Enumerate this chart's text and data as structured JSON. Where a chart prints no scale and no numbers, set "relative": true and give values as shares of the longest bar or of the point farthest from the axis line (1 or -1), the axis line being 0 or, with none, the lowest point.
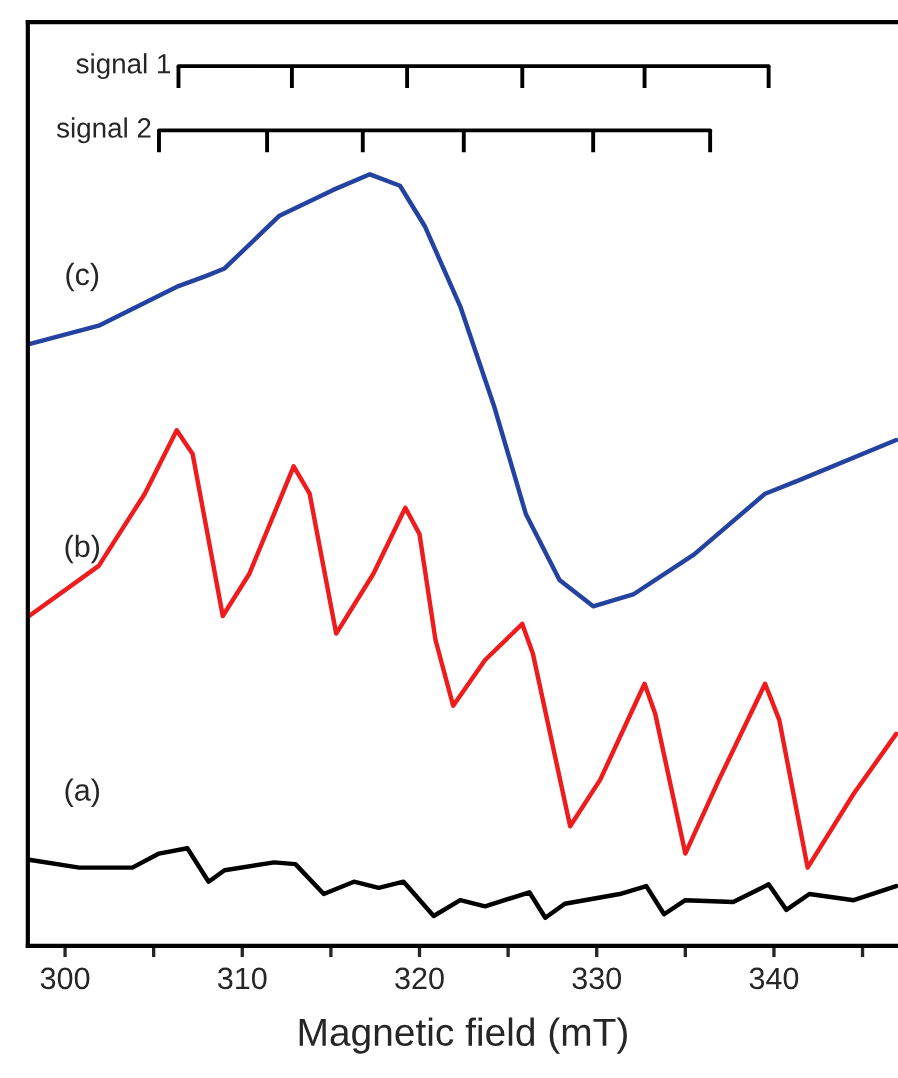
{
  "chart_data": {
    "type": "line",
    "relative": true,
    "xlabel": "Magnetic field (mT)",
    "xlim": [
      297.9,
      347
    ],
    "xticks": [
      300,
      {
        "value": 305,
        "label": null
      },
      310,
      {
        "value": 315,
        "label": null
      },
      320,
      {
        "value": 325,
        "label": null
      },
      330,
      {
        "value": 335,
        "label": null
      },
      340,
      {
        "value": 345,
        "label": null
      }
    ],
    "grid": false,
    "legend": "top left",
    "marker": "none",
    "line_style": "solid",
    "tick_labels": "x",
    "series": [
      {
        "name": "signal 1",
        "color": "#000000",
        "x": [
          306.4,
          312.8,
          319.3,
          325.8,
          332.7,
          339.7
        ],
        "values": [
          1.0,
          1.0,
          1.0,
          1.0,
          1.0,
          1.0
        ]
      },
      {
        "name": "signal 2",
        "color": "#000000",
        "x": [
          305.3,
          311.4,
          316.8,
          322.5,
          329.8,
          336.4
        ],
        "values": [
          0.927,
          0.927,
          0.927,
          0.927,
          0.927,
          0.927
        ]
      },
      {
        "name": "(c)",
        "color": "#2443a0",
        "x": [
          297.97,
          301.9,
          306.4,
          307.9,
          309.0,
          312.1,
          315.1,
          317.2,
          318.9,
          320.3,
          322.3,
          324.2,
          326.0,
          327.9,
          329.8,
          332.1,
          335.5,
          339.5,
          341.5,
          346.9
        ],
        "values": [
          0.684,
          0.705,
          0.75,
          0.761,
          0.77,
          0.83,
          0.859,
          0.877,
          0.864,
          0.818,
          0.727,
          0.614,
          0.491,
          0.416,
          0.386,
          0.4,
          0.445,
          0.514,
          0.53,
          0.575
        ]
      },
      {
        "name": "(b)",
        "color": "#ee1c1c",
        "x": [
          297.97,
          301.9,
          304.5,
          306.3,
          307.2,
          308.9,
          310.4,
          312.9,
          313.8,
          315.3,
          317.4,
          319.2,
          320.0,
          320.9,
          321.9,
          323.7,
          325.8,
          326.4,
          328.5,
          330.2,
          332.7,
          333.3,
          335.0,
          336.9,
          339.5,
          340.3,
          341.9,
          344.5,
          346.9
        ],
        "values": [
          0.375,
          0.432,
          0.514,
          0.586,
          0.559,
          0.375,
          0.423,
          0.545,
          0.514,
          0.355,
          0.423,
          0.498,
          0.468,
          0.348,
          0.273,
          0.325,
          0.366,
          0.332,
          0.136,
          0.189,
          0.298,
          0.264,
          0.105,
          0.189,
          0.298,
          0.257,
          0.089,
          0.173,
          0.241
        ]
      },
      {
        "name": "(a)",
        "color": "#000000",
        "x": [
          297.97,
          300.8,
          303.8,
          305.3,
          306.9,
          308.1,
          309.0,
          311.8,
          313.0,
          314.6,
          316.3,
          317.7,
          319.1,
          320.8,
          322.3,
          323.7,
          326.2,
          327.1,
          328.2,
          331.3,
          332.8,
          333.8,
          335.0,
          337.7,
          339.7,
          340.7,
          342.0,
          344.5,
          346.9
        ],
        "values": [
          0.098,
          0.089,
          0.089,
          0.105,
          0.111,
          0.073,
          0.086,
          0.095,
          0.093,
          0.059,
          0.073,
          0.066,
          0.073,
          0.034,
          0.052,
          0.045,
          0.061,
          0.032,
          0.048,
          0.059,
          0.068,
          0.036,
          0.052,
          0.05,
          0.07,
          0.041,
          0.059,
          0.052,
          0.068
        ]
      }
    ]
  }
}
